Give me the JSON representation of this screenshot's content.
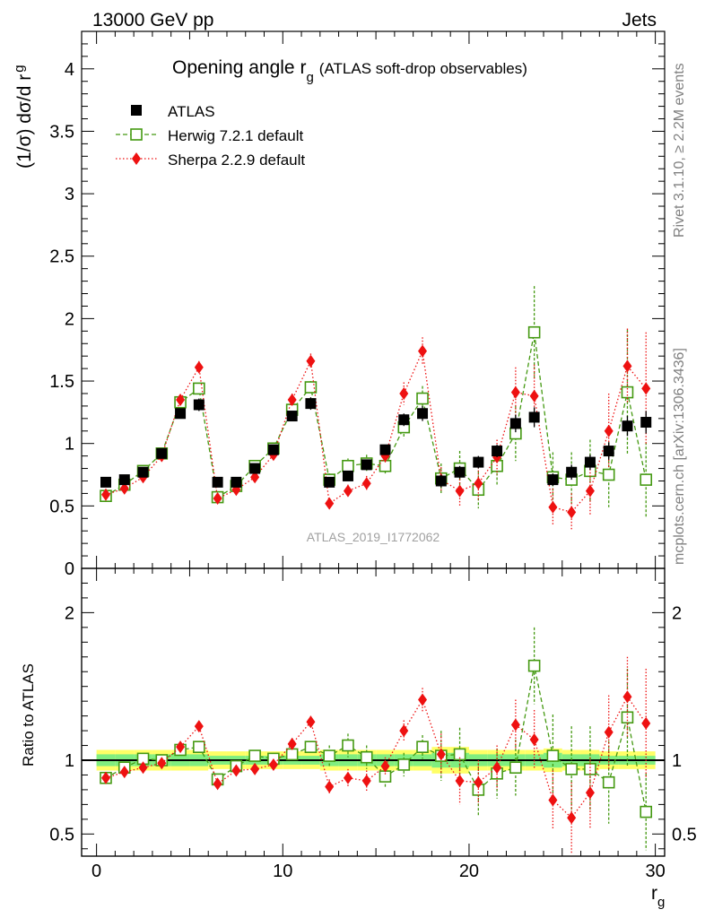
{
  "header": {
    "left": "13000 GeV pp",
    "right": "Jets"
  },
  "side_labels": {
    "rivet": "Rivet 3.1.10, ≥ 2.2M events",
    "mcplots": "mcplots.cern.ch [arXiv:1306.3436]"
  },
  "analysis_id": "ATLAS_2019_I1772062",
  "chart_data": [
    {
      "type": "scatter",
      "title_main": "Opening angle r",
      "title_sub": "g",
      "title_rest": "(ATLAS soft-drop observables)",
      "ylabel": "(1/σ) dσ/d r",
      "ylabel_sub": "g",
      "xlim": [
        -0.8,
        30.5
      ],
      "ylim": [
        0,
        4.3
      ],
      "yticks": [
        0,
        0.5,
        1,
        1.5,
        2,
        2.5,
        3,
        3.5,
        4
      ],
      "ytick_labels": [
        "0",
        "0.5",
        "1",
        "1.5",
        "2",
        "2.5",
        "3",
        "3.5",
        "4"
      ],
      "legend_position": "top-left",
      "x": [
        0.5,
        1.5,
        2.5,
        3.5,
        4.5,
        5.5,
        6.5,
        7.5,
        8.5,
        9.5,
        10.5,
        11.5,
        12.5,
        13.5,
        14.5,
        15.5,
        16.5,
        17.5,
        18.5,
        19.5,
        20.5,
        21.5,
        22.5,
        23.5,
        24.5,
        25.5,
        26.5,
        27.5,
        28.5,
        29.5
      ],
      "series": [
        {
          "name": "ATLAS",
          "color": "#000000",
          "marker": "square-filled",
          "values": [
            0.69,
            0.71,
            0.77,
            0.92,
            1.24,
            1.31,
            0.69,
            0.69,
            0.8,
            0.95,
            1.22,
            1.32,
            0.69,
            0.74,
            0.83,
            0.95,
            1.19,
            1.24,
            0.7,
            0.77,
            0.85,
            0.94,
            1.16,
            1.21,
            0.71,
            0.77,
            0.85,
            0.94,
            1.14,
            1.17
          ],
          "errors": [
            0.03,
            0.03,
            0.03,
            0.03,
            0.04,
            0.05,
            0.03,
            0.03,
            0.03,
            0.03,
            0.04,
            0.05,
            0.03,
            0.03,
            0.04,
            0.04,
            0.05,
            0.06,
            0.05,
            0.05,
            0.05,
            0.05,
            0.07,
            0.08,
            0.05,
            0.06,
            0.06,
            0.07,
            0.08,
            0.09
          ]
        },
        {
          "name": "Herwig 7.2.1 default",
          "color": "#449911",
          "marker": "square-open",
          "line": "dashed",
          "values": [
            0.58,
            0.67,
            0.78,
            0.92,
            1.33,
            1.44,
            0.57,
            0.66,
            0.82,
            0.96,
            1.27,
            1.45,
            0.71,
            0.82,
            0.84,
            0.82,
            1.13,
            1.36,
            0.72,
            0.8,
            0.63,
            0.82,
            1.08,
            1.89,
            0.73,
            0.71,
            0.78,
            0.75,
            1.41,
            0.71
          ],
          "errors": [
            0.02,
            0.02,
            0.02,
            0.03,
            0.04,
            0.04,
            0.02,
            0.02,
            0.03,
            0.03,
            0.05,
            0.05,
            0.05,
            0.06,
            0.07,
            0.06,
            0.09,
            0.1,
            0.12,
            0.14,
            0.15,
            0.16,
            0.22,
            0.37,
            0.2,
            0.22,
            0.25,
            0.26,
            0.5,
            0.3
          ]
        },
        {
          "name": "Sherpa 2.2.9 default",
          "color": "#ee1111",
          "marker": "diamond-filled",
          "line": "dotted",
          "values": [
            0.59,
            0.64,
            0.73,
            0.9,
            1.35,
            1.61,
            0.56,
            0.63,
            0.73,
            0.91,
            1.35,
            1.66,
            0.52,
            0.62,
            0.68,
            0.9,
            1.4,
            1.74,
            0.71,
            0.62,
            0.68,
            0.89,
            1.41,
            1.38,
            0.49,
            0.45,
            0.62,
            1.1,
            1.62,
            1.44
          ],
          "errors": [
            0.02,
            0.02,
            0.02,
            0.03,
            0.04,
            0.05,
            0.02,
            0.02,
            0.03,
            0.03,
            0.05,
            0.06,
            0.04,
            0.05,
            0.06,
            0.06,
            0.09,
            0.11,
            0.1,
            0.12,
            0.13,
            0.14,
            0.2,
            0.25,
            0.15,
            0.15,
            0.2,
            0.3,
            0.3,
            0.45
          ]
        }
      ]
    },
    {
      "type": "scatter",
      "ylabel": "Ratio to ATLAS",
      "xlabel": "r",
      "xlabel_sub": "g",
      "xlim": [
        -0.8,
        30.5
      ],
      "ylim": [
        0.35,
        2.3
      ],
      "yticks": [
        0.5,
        1,
        2
      ],
      "ytick_labels": [
        "0.5",
        "1",
        "2"
      ],
      "xticks": [
        0,
        10,
        20,
        30
      ],
      "xtick_labels": [
        "0",
        "10",
        "20",
        "30"
      ],
      "band_outer": [
        0.07,
        0.07,
        0.07,
        0.07,
        0.07,
        0.07,
        0.06,
        0.06,
        0.06,
        0.06,
        0.06,
        0.06,
        0.07,
        0.07,
        0.07,
        0.07,
        0.07,
        0.07,
        0.09,
        0.09,
        0.07,
        0.07,
        0.07,
        0.07,
        0.08,
        0.07,
        0.07,
        0.06,
        0.06,
        0.06
      ],
      "band_inner": [
        0.04,
        0.04,
        0.04,
        0.04,
        0.04,
        0.04,
        0.03,
        0.03,
        0.03,
        0.03,
        0.03,
        0.03,
        0.04,
        0.04,
        0.04,
        0.04,
        0.04,
        0.04,
        0.05,
        0.05,
        0.04,
        0.04,
        0.04,
        0.04,
        0.05,
        0.04,
        0.04,
        0.03,
        0.03,
        0.03
      ],
      "band_outer_color": "#ffff66",
      "band_inner_color": "#80ee80",
      "series": [
        {
          "name": "Herwig 7.2.1 default",
          "color": "#449911",
          "marker": "square-open",
          "line": "dashed",
          "values": [
            0.88,
            0.95,
            1.01,
            1.0,
            1.07,
            1.09,
            0.87,
            0.96,
            1.03,
            1.01,
            1.04,
            1.09,
            1.03,
            1.1,
            1.02,
            0.89,
            0.97,
            1.09,
            1.03,
            1.04,
            0.8,
            0.91,
            0.95,
            1.64,
            1.03,
            0.94,
            0.94,
            0.85,
            1.29,
            0.65
          ],
          "errors": [
            0.02,
            0.02,
            0.02,
            0.02,
            0.02,
            0.02,
            0.02,
            0.02,
            0.03,
            0.03,
            0.04,
            0.04,
            0.07,
            0.08,
            0.08,
            0.07,
            0.08,
            0.08,
            0.17,
            0.18,
            0.18,
            0.17,
            0.19,
            0.26,
            0.28,
            0.29,
            0.29,
            0.28,
            0.33,
            0.26
          ]
        },
        {
          "name": "Sherpa 2.2.9 default",
          "color": "#ee1111",
          "marker": "diamond-filled",
          "line": "dotted",
          "values": [
            0.88,
            0.92,
            0.95,
            0.98,
            1.09,
            1.23,
            0.84,
            0.93,
            0.94,
            0.97,
            1.11,
            1.26,
            0.82,
            0.88,
            0.86,
            0.96,
            1.2,
            1.41,
            1.04,
            0.86,
            0.85,
            0.95,
            1.24,
            1.14,
            0.73,
            0.61,
            0.78,
            1.19,
            1.43,
            1.25
          ],
          "errors": [
            0.02,
            0.02,
            0.02,
            0.02,
            0.02,
            0.03,
            0.02,
            0.02,
            0.03,
            0.03,
            0.04,
            0.04,
            0.05,
            0.06,
            0.07,
            0.06,
            0.07,
            0.08,
            0.14,
            0.16,
            0.15,
            0.15,
            0.17,
            0.2,
            0.2,
            0.24,
            0.24,
            0.25,
            0.27,
            0.37
          ]
        }
      ]
    }
  ]
}
